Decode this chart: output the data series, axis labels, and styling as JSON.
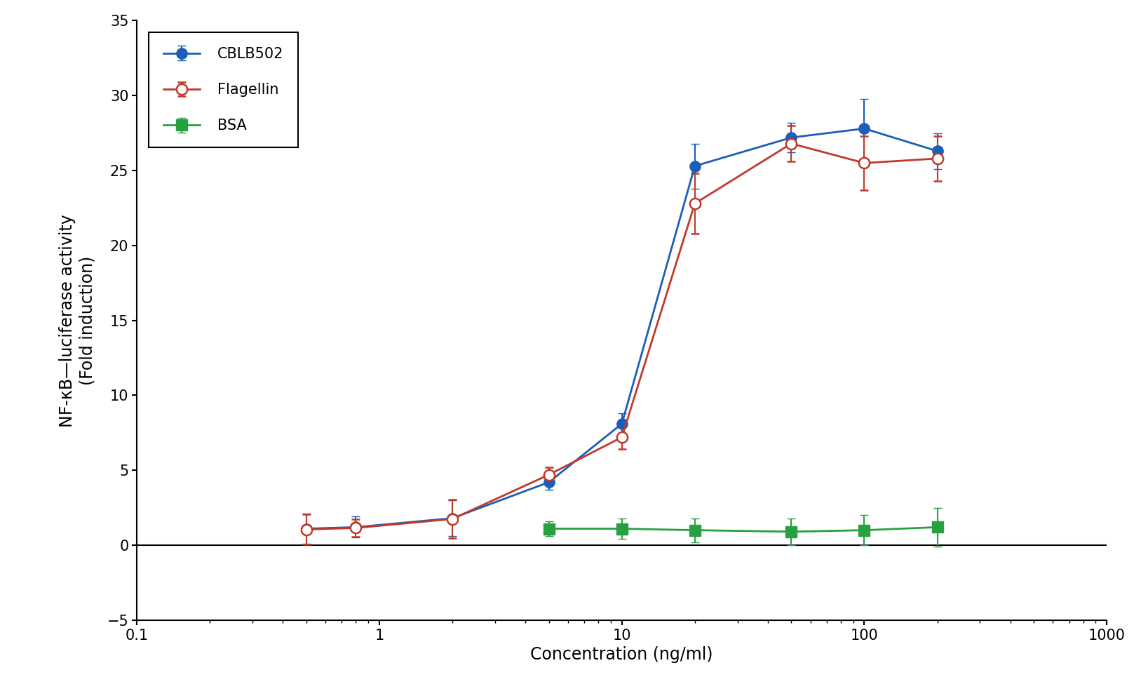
{
  "title": "",
  "xlabel": "Concentration (ng/ml)",
  "ylabel": "NF-κB—luciferase activity\n(Fold induction)",
  "xlim": [
    0.1,
    1000
  ],
  "ylim": [
    -5,
    35
  ],
  "yticks": [
    -5,
    0,
    5,
    10,
    15,
    20,
    25,
    30,
    35
  ],
  "CBLB502": {
    "x": [
      0.5,
      0.8,
      2,
      5,
      10,
      20,
      50,
      100,
      200
    ],
    "y": [
      1.1,
      1.2,
      1.8,
      4.2,
      8.1,
      25.3,
      27.2,
      27.8,
      26.3
    ],
    "yerr": [
      1.0,
      0.7,
      1.2,
      0.5,
      0.7,
      1.5,
      1.0,
      2.0,
      1.2
    ],
    "color": "#1a5eb8",
    "marker": "o",
    "markerfacecolor": "#1a5eb8",
    "label": "CBLB502"
  },
  "Flagellin": {
    "x": [
      0.5,
      0.8,
      2,
      5,
      10,
      20,
      50,
      100,
      200
    ],
    "y": [
      1.05,
      1.15,
      1.75,
      4.7,
      7.2,
      22.8,
      26.8,
      25.5,
      25.8
    ],
    "yerr": [
      1.0,
      0.6,
      1.3,
      0.5,
      0.8,
      2.0,
      1.2,
      1.8,
      1.5
    ],
    "color": "#c0392b",
    "marker": "o",
    "markerfacecolor": "white",
    "label": "Flagellin"
  },
  "BSA": {
    "x": [
      5,
      10,
      20,
      50,
      100,
      200
    ],
    "y": [
      1.1,
      1.1,
      1.0,
      0.9,
      1.0,
      1.2
    ],
    "yerr": [
      0.5,
      0.7,
      0.8,
      0.9,
      1.0,
      1.3
    ],
    "color": "#27a040",
    "marker": "s",
    "markerfacecolor": "#27a040",
    "label": "BSA"
  },
  "background_color": "#ffffff",
  "legend_fontsize": 15,
  "axis_fontsize": 17,
  "tick_fontsize": 15,
  "markersize": 11,
  "linewidth": 2.0,
  "capsize": 4
}
